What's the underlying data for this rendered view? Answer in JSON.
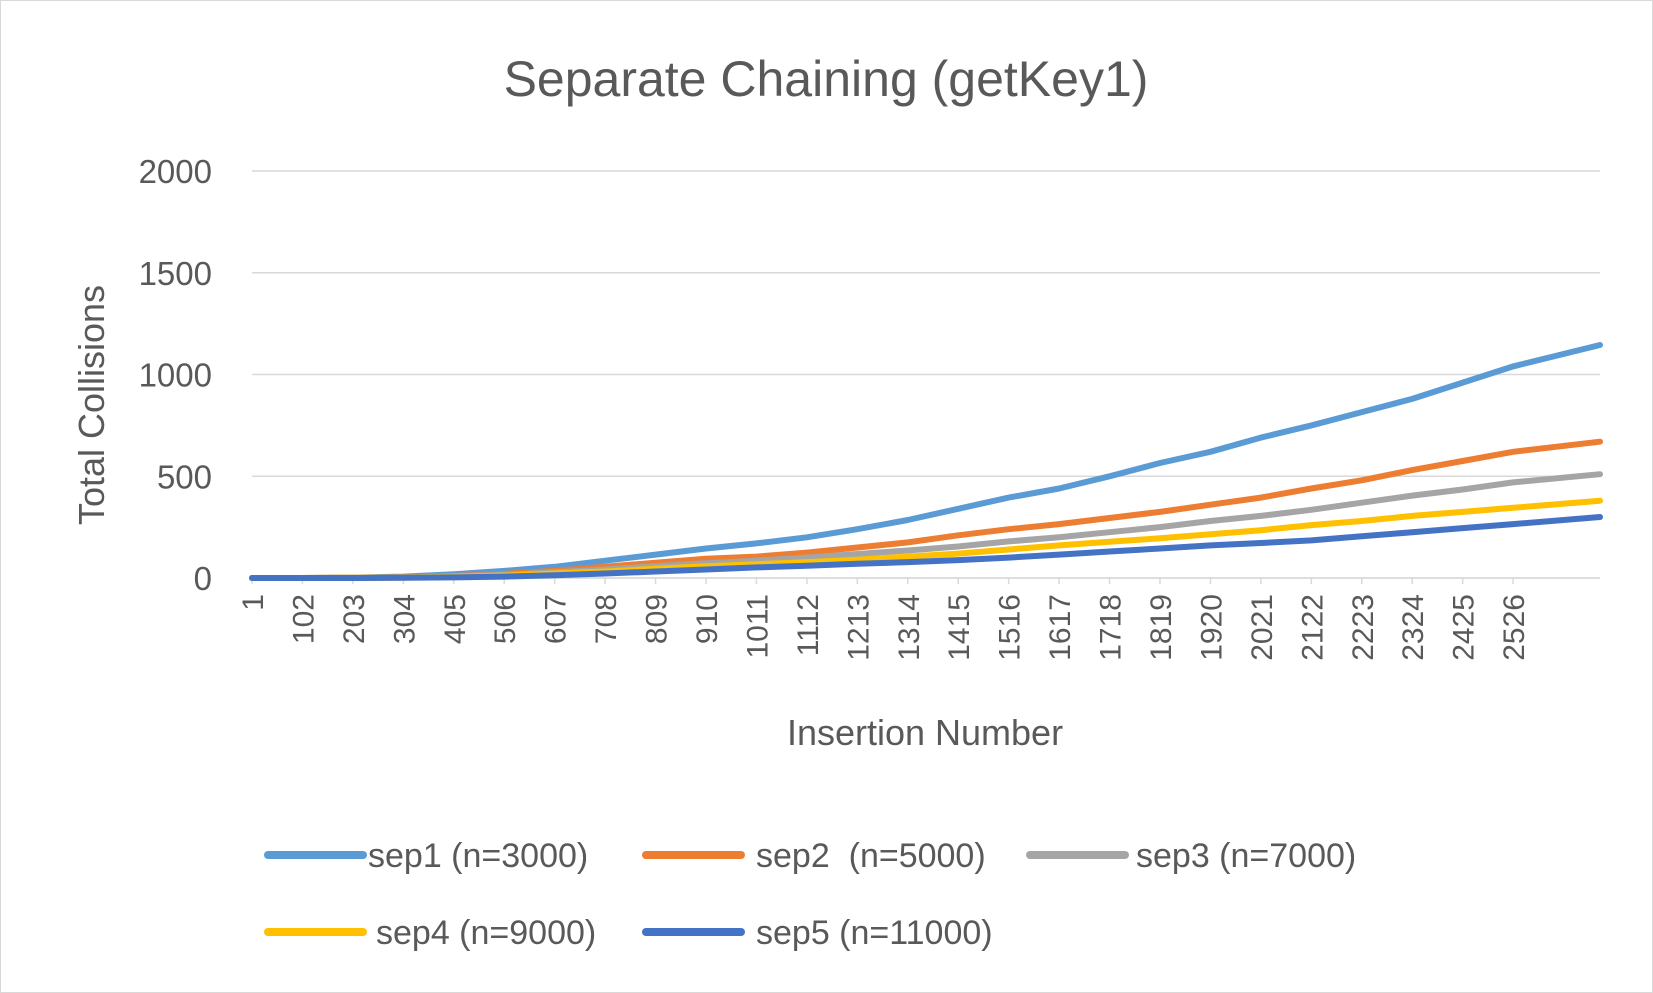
{
  "chart_data": {
    "type": "line",
    "title": "Separate Chaining (getKey1)",
    "xlabel": "Insertion Number",
    "ylabel": "Total Collisions",
    "ylim": [
      0,
      2000
    ],
    "y_ticks": [
      0,
      500,
      1000,
      1500,
      2000
    ],
    "x_range": [
      1,
      2700
    ],
    "x_ticks": [
      "1",
      "102",
      "203",
      "304",
      "405",
      "506",
      "607",
      "708",
      "809",
      "910",
      "1011",
      "1112",
      "1213",
      "1314",
      "1415",
      "1516",
      "1617",
      "1718",
      "1819",
      "1920",
      "2021",
      "2122",
      "2223",
      "2324",
      "2425",
      "2526"
    ],
    "grid": true,
    "legend_position": "bottom",
    "series": [
      {
        "name": "sep1 (n=3000)",
        "color": "#5b9bd5",
        "x": [
          1,
          102,
          203,
          304,
          405,
          506,
          607,
          708,
          809,
          910,
          1011,
          1112,
          1213,
          1314,
          1415,
          1516,
          1617,
          1718,
          1819,
          1920,
          2021,
          2122,
          2223,
          2324,
          2425,
          2526,
          2700
        ],
        "values": [
          0,
          0,
          2,
          7,
          18,
          35,
          55,
          85,
          115,
          145,
          170,
          200,
          240,
          285,
          340,
          395,
          440,
          500,
          565,
          620,
          690,
          750,
          815,
          880,
          960,
          1040,
          1145
        ]
      },
      {
        "name": "sep2  (n=5000)",
        "color": "#ed7d31",
        "x": [
          1,
          102,
          203,
          304,
          405,
          506,
          607,
          708,
          809,
          910,
          1011,
          1112,
          1213,
          1314,
          1415,
          1516,
          1617,
          1718,
          1819,
          1920,
          2021,
          2122,
          2223,
          2324,
          2425,
          2526,
          2700
        ],
        "values": [
          0,
          0,
          1,
          4,
          10,
          20,
          35,
          55,
          75,
          95,
          105,
          125,
          150,
          175,
          210,
          240,
          265,
          295,
          325,
          360,
          395,
          440,
          480,
          530,
          575,
          620,
          670
        ]
      },
      {
        "name": "sep3 (n=7000)",
        "color": "#a5a5a5",
        "x": [
          1,
          102,
          203,
          304,
          405,
          506,
          607,
          708,
          809,
          910,
          1011,
          1112,
          1213,
          1314,
          1415,
          1516,
          1617,
          1718,
          1819,
          1920,
          2021,
          2122,
          2223,
          2324,
          2425,
          2526,
          2700
        ],
        "values": [
          0,
          0,
          1,
          3,
          8,
          15,
          28,
          42,
          58,
          72,
          85,
          100,
          118,
          135,
          155,
          180,
          200,
          225,
          250,
          280,
          305,
          335,
          370,
          405,
          435,
          470,
          510
        ]
      },
      {
        "name": "sep4 (n=9000)",
        "color": "#ffc000",
        "x": [
          1,
          102,
          203,
          304,
          405,
          506,
          607,
          708,
          809,
          910,
          1011,
          1112,
          1213,
          1314,
          1415,
          1516,
          1617,
          1718,
          1819,
          1920,
          2021,
          2122,
          2223,
          2324,
          2425,
          2526,
          2700
        ],
        "values": [
          0,
          0,
          1,
          2,
          6,
          12,
          22,
          32,
          45,
          58,
          68,
          78,
          90,
          105,
          120,
          140,
          160,
          178,
          195,
          215,
          235,
          260,
          280,
          305,
          325,
          345,
          380
        ]
      },
      {
        "name": "sep5 (n=11000)",
        "color": "#4472c4",
        "x": [
          1,
          102,
          203,
          304,
          405,
          506,
          607,
          708,
          809,
          910,
          1011,
          1112,
          1213,
          1314,
          1415,
          1516,
          1617,
          1718,
          1819,
          1920,
          2021,
          2122,
          2223,
          2324,
          2425,
          2526,
          2700
        ],
        "values": [
          0,
          0,
          0,
          1,
          3,
          7,
          14,
          22,
          32,
          42,
          52,
          60,
          70,
          78,
          88,
          100,
          115,
          130,
          145,
          160,
          172,
          185,
          205,
          225,
          245,
          265,
          300
        ]
      }
    ]
  }
}
